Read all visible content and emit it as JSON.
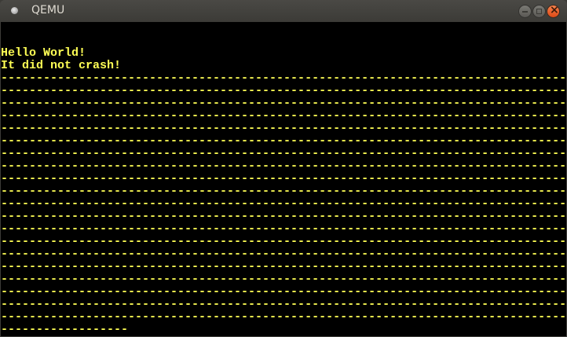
{
  "window": {
    "title": "QEMU",
    "buttons": [
      "minimize",
      "maximize",
      "close"
    ],
    "close_color": "#e95420"
  },
  "screen": {
    "text_color": "#ffff55",
    "lines": [
      "",
      "",
      "Hello World!",
      "It did not crash!",
      "--------------------------------------------------------------------------------",
      "--------------------------------------------------------------------------------",
      "--------------------------------------------------------------------------------",
      "--------------------------------------------------------------------------------",
      "--------------------------------------------------------------------------------",
      "--------------------------------------------------------------------------------",
      "--------------------------------------------------------------------------------",
      "--------------------------------------------------------------------------------",
      "--------------------------------------------------------------------------------",
      "--------------------------------------------------------------------------------",
      "--------------------------------------------------------------------------------",
      "--------------------------------------------------------------------------------",
      "--------------------------------------------------------------------------------",
      "--------------------------------------------------------------------------------",
      "--------------------------------------------------------------------------------",
      "--------------------------------------------------------------------------------",
      "--------------------------------------------------------------------------------",
      "--------------------------------------------------------------------------------",
      "--------------------------------------------------------------------------------",
      "--------------------------------------------------------------------------------",
      "------------------"
    ]
  }
}
